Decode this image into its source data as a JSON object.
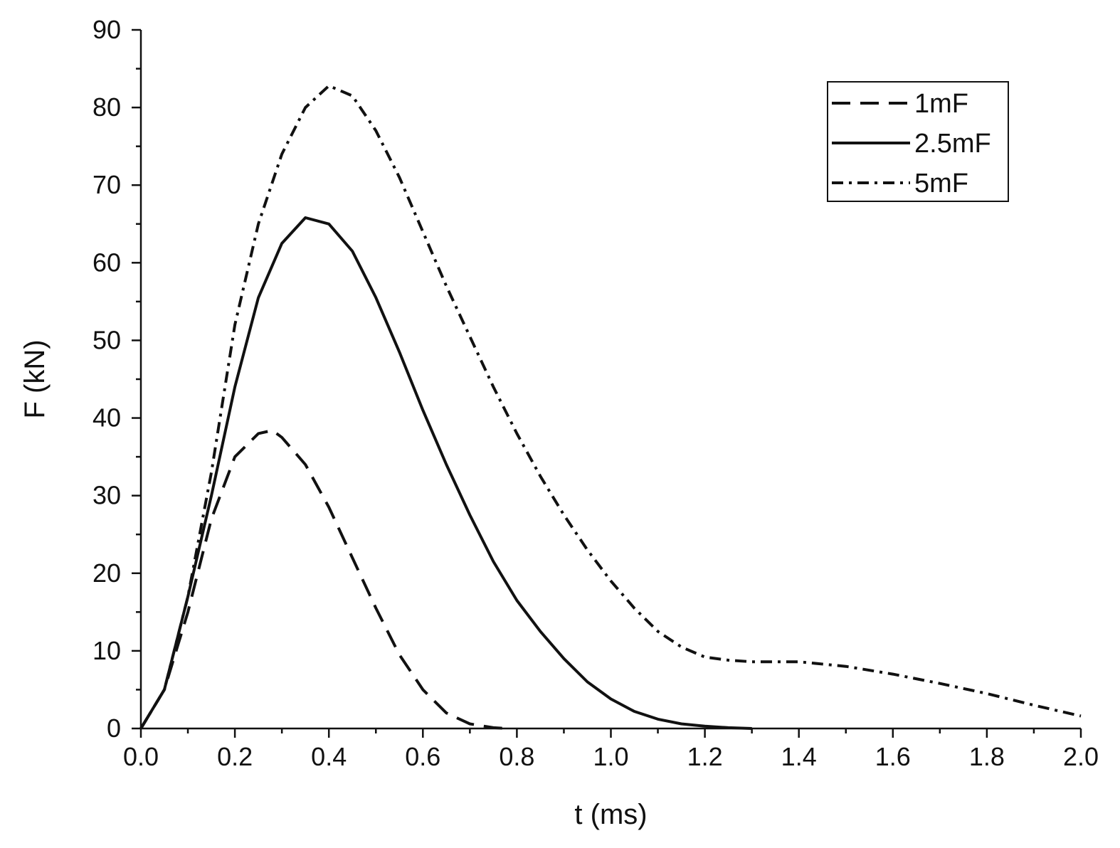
{
  "chart_data": {
    "type": "line",
    "xlabel": "t (ms)",
    "ylabel": "F (kN)",
    "xlim": [
      0,
      2.0
    ],
    "ylim": [
      0,
      90
    ],
    "x_ticks": [
      "0.0",
      "0.2",
      "0.4",
      "0.6",
      "0.8",
      "1.0",
      "1.2",
      "1.4",
      "1.6",
      "1.8",
      "2.0"
    ],
    "y_ticks": [
      "0",
      "10",
      "20",
      "30",
      "40",
      "50",
      "60",
      "70",
      "80",
      "90"
    ],
    "grid": false,
    "legend_position": "top-right",
    "series": [
      {
        "name": "1mF",
        "style": "dashed",
        "x": [
          0.0,
          0.05,
          0.1,
          0.15,
          0.2,
          0.25,
          0.28,
          0.3,
          0.35,
          0.4,
          0.45,
          0.5,
          0.55,
          0.6,
          0.65,
          0.7,
          0.75,
          0.78
        ],
        "y": [
          0,
          5,
          15,
          27,
          35,
          38,
          38.4,
          37.5,
          34,
          28.5,
          22,
          15.5,
          9.5,
          5,
          2,
          0.6,
          0.1,
          0
        ]
      },
      {
        "name": "2.5mF",
        "style": "solid",
        "x": [
          0.0,
          0.05,
          0.1,
          0.15,
          0.2,
          0.25,
          0.3,
          0.35,
          0.4,
          0.45,
          0.5,
          0.55,
          0.6,
          0.65,
          0.7,
          0.75,
          0.8,
          0.85,
          0.9,
          0.95,
          1.0,
          1.05,
          1.1,
          1.15,
          1.2,
          1.25,
          1.3
        ],
        "y": [
          0,
          5,
          17,
          30,
          44,
          55.5,
          62.5,
          65.8,
          65,
          61.5,
          55.5,
          48.5,
          41,
          34,
          27.5,
          21.5,
          16.5,
          12.5,
          9,
          6,
          3.8,
          2.2,
          1.2,
          0.6,
          0.3,
          0.1,
          0
        ]
      },
      {
        "name": "5mF",
        "style": "dash-dot",
        "x": [
          0.0,
          0.05,
          0.1,
          0.15,
          0.2,
          0.25,
          0.3,
          0.35,
          0.4,
          0.45,
          0.5,
          0.55,
          0.6,
          0.65,
          0.7,
          0.75,
          0.8,
          0.85,
          0.9,
          0.95,
          1.0,
          1.05,
          1.1,
          1.15,
          1.2,
          1.25,
          1.3,
          1.35,
          1.4,
          1.5,
          1.6,
          1.7,
          1.8,
          1.9,
          2.0
        ],
        "y": [
          0,
          5,
          17,
          33,
          52,
          65,
          74,
          80,
          82.8,
          81.5,
          77,
          71,
          64,
          57,
          50.5,
          44,
          38,
          32.5,
          27.5,
          23,
          19,
          15.5,
          12.5,
          10.5,
          9.2,
          8.8,
          8.6,
          8.6,
          8.6,
          8,
          7,
          5.8,
          4.5,
          3,
          1.6
        ]
      }
    ]
  }
}
